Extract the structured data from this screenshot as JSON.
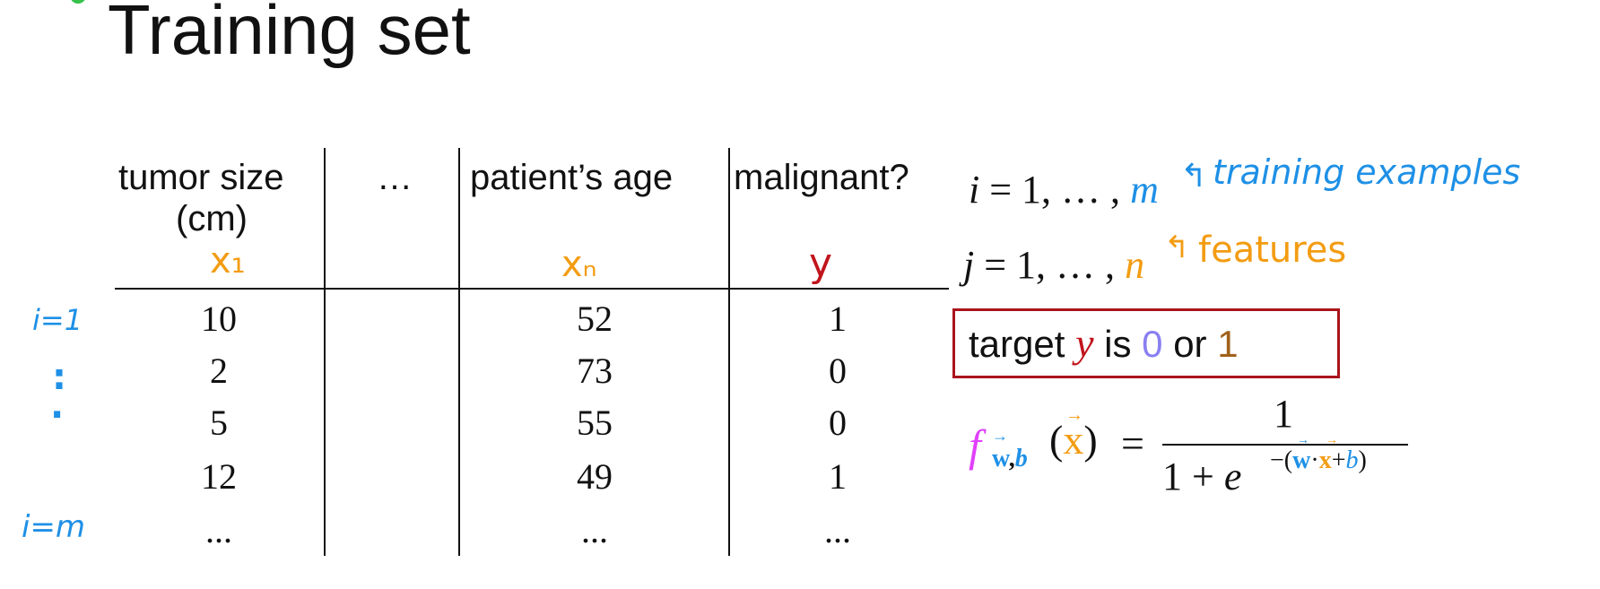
{
  "title": "Training set",
  "table": {
    "headers": {
      "col1_line1": "tumor size",
      "col1_line2": "(cm)",
      "col2": "…",
      "col3": "patient’s age",
      "col4": "malignant?"
    },
    "symbols": {
      "col1": "x₁",
      "col3": "xₙ",
      "col4": "y"
    },
    "rows": [
      {
        "size": "10",
        "age": "52",
        "malignant": "1"
      },
      {
        "size": "2",
        "age": "73",
        "malignant": "0"
      },
      {
        "size": "5",
        "age": "55",
        "malignant": "0"
      },
      {
        "size": "12",
        "age": "49",
        "malignant": "1"
      },
      {
        "size": "...",
        "age": "...",
        "malignant": "..."
      }
    ],
    "row_labels": {
      "first": "i=1",
      "dots1": ":",
      "dots2": ".",
      "last": "i=m"
    }
  },
  "notes": {
    "i_range": {
      "var": "i",
      "eq": " = 1, … , ",
      "end": "m",
      "arrow": "↰",
      "label": "training examples"
    },
    "j_range": {
      "var": "j",
      "eq": " = 1, … , ",
      "end": "n",
      "arrow": "↰",
      "label": "features"
    },
    "target": {
      "word": "target ",
      "y": "y",
      "is": " is ",
      "zero": "0",
      "or": " or ",
      "one": "1"
    }
  },
  "formula": {
    "f": "f",
    "sub_w": "w",
    "sub_comma": ",",
    "sub_b": "b",
    "x_arg": "x",
    "open": "(",
    "close": ")",
    "equals": "=",
    "numerator": "1",
    "denominator_base": "1 + ",
    "e": "e",
    "exp_minus": "−(",
    "exp_w": "w",
    "exp_dot": "·",
    "exp_x": "x",
    "exp_plus": "+",
    "exp_b": "b",
    "exp_close": ")",
    "vec_arrow": "→"
  },
  "colors": {
    "orange": "#f39c12",
    "red": "#c0141c",
    "blue": "#1e90e6",
    "magenta": "#e040fb",
    "purple": "#8a7ff0",
    "brown": "#a0611a",
    "green_dot": "#35c24a"
  }
}
